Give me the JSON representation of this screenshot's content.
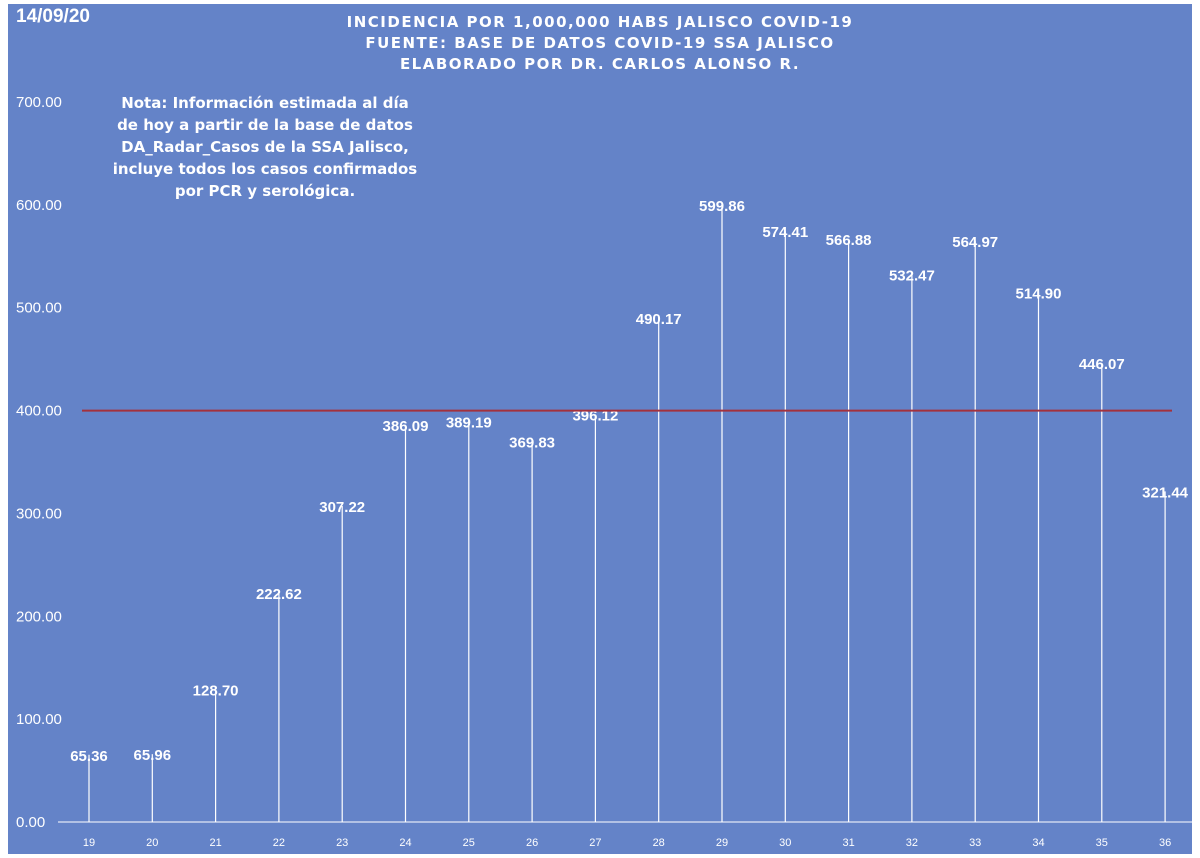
{
  "chart_data": {
    "type": "bar",
    "date": "14/09/20",
    "title_lines": [
      "INCIDENCIA POR 1,000,000 HABS JALISCO COVID-19",
      "FUENTE: BASE DE DATOS COVID-19 SSA JALISCO",
      "ELABORADO POR DR. CARLOS ALONSO R."
    ],
    "note_lines": [
      "Nota: Información estimada al día",
      "de hoy a partir de la base de datos",
      "DA_Radar_Casos de la SSA Jalisco,",
      "incluye todos los casos confirmados",
      "por PCR y serológica."
    ],
    "categories": [
      "19",
      "20",
      "21",
      "22",
      "23",
      "24",
      "25",
      "26",
      "27",
      "28",
      "29",
      "30",
      "31",
      "32",
      "33",
      "34",
      "35",
      "36"
    ],
    "values": [
      65.36,
      65.96,
      128.7,
      222.62,
      307.22,
      386.09,
      389.19,
      369.83,
      396.12,
      490.17,
      599.86,
      574.41,
      566.88,
      532.47,
      564.97,
      514.9,
      446.07,
      321.44
    ],
    "value_labels": [
      "65.36",
      "65.96",
      "128.70",
      "222.62",
      "307.22",
      "386.09",
      "389.19",
      "369.83",
      "396.12",
      "490.17",
      "599.86",
      "574.41",
      "566.88",
      "532.47",
      "564.97",
      "514.90",
      "446.07",
      "321.44"
    ],
    "yticks": [
      0,
      100,
      200,
      300,
      400,
      500,
      600,
      700
    ],
    "ytick_labels": [
      "0.00",
      "100.00",
      "200.00",
      "300.00",
      "400.00",
      "500.00",
      "600.00",
      "700.00"
    ],
    "ylim": [
      0,
      700
    ],
    "reference_line": 400,
    "grid": false,
    "colors": {
      "background": "#6483c8",
      "bars": "#ffffff",
      "reference_line": "#a3313d",
      "text": "#ffffff"
    }
  }
}
